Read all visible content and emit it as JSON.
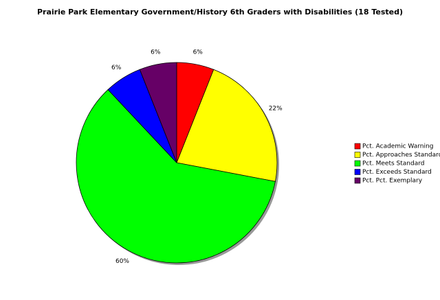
{
  "chart_data": {
    "type": "pie",
    "title": "Prairie Park Elementary Government/History 6th Graders with Disabilities (18 Tested)",
    "categories": [
      "Pct. Academic Warning",
      "Pct. Approaches Standard",
      "Pct. Meets Standard",
      "Pct. Exceeds Standard",
      "Pct. Pct. Exemplary"
    ],
    "values": [
      6,
      22,
      60,
      6,
      6
    ],
    "value_labels": [
      "6%",
      "22%",
      "60%",
      "6%",
      "6%"
    ],
    "colors": [
      "#ff0000",
      "#ffff00",
      "#00ff00",
      "#0000ff",
      "#660066"
    ],
    "legend": "right"
  }
}
